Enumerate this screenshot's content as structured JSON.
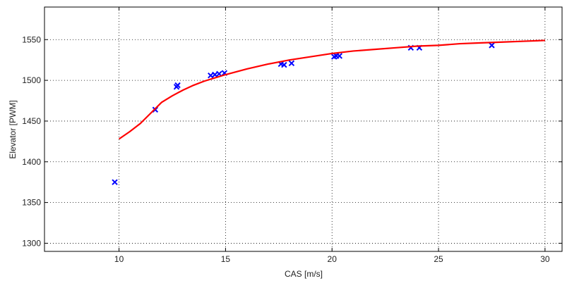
{
  "chart_data": {
    "type": "scatter",
    "title": "",
    "xlabel": "CAS [m/s]",
    "ylabel": "Elevator [PWM]",
    "xlim": [
      6.5,
      30.8
    ],
    "ylim": [
      1290,
      1590
    ],
    "xticks": [
      10,
      15,
      20,
      25,
      30
    ],
    "yticks": [
      1300,
      1350,
      1400,
      1450,
      1500,
      1550
    ],
    "grid": true,
    "series": [
      {
        "type": "scatter",
        "marker": "x",
        "color": "#0000ff",
        "points": [
          [
            9.8,
            1375
          ],
          [
            11.7,
            1464
          ],
          [
            12.7,
            1492
          ],
          [
            12.75,
            1494
          ],
          [
            14.3,
            1506
          ],
          [
            14.5,
            1507
          ],
          [
            14.7,
            1508
          ],
          [
            14.95,
            1509
          ],
          [
            17.6,
            1520
          ],
          [
            17.75,
            1519
          ],
          [
            18.1,
            1521
          ],
          [
            20.1,
            1529
          ],
          [
            20.2,
            1530
          ],
          [
            20.35,
            1530
          ],
          [
            23.7,
            1540
          ],
          [
            24.1,
            1540
          ],
          [
            27.5,
            1543
          ]
        ]
      },
      {
        "type": "line",
        "color": "#ff0000",
        "points": [
          [
            10.0,
            1428
          ],
          [
            10.5,
            1437
          ],
          [
            11.0,
            1447
          ],
          [
            11.5,
            1460
          ],
          [
            12.0,
            1473
          ],
          [
            12.5,
            1481
          ],
          [
            13.0,
            1488
          ],
          [
            13.5,
            1494
          ],
          [
            14.0,
            1499
          ],
          [
            14.5,
            1503
          ],
          [
            15.0,
            1507
          ],
          [
            16.0,
            1514
          ],
          [
            17.0,
            1520
          ],
          [
            18.0,
            1525
          ],
          [
            19.0,
            1529
          ],
          [
            20.0,
            1533
          ],
          [
            21.0,
            1536
          ],
          [
            22.0,
            1538
          ],
          [
            23.0,
            1540
          ],
          [
            24.0,
            1542
          ],
          [
            25.0,
            1543
          ],
          [
            26.0,
            1545
          ],
          [
            27.0,
            1546
          ],
          [
            28.0,
            1547
          ],
          [
            29.0,
            1548
          ],
          [
            30.0,
            1549
          ]
        ]
      }
    ]
  }
}
